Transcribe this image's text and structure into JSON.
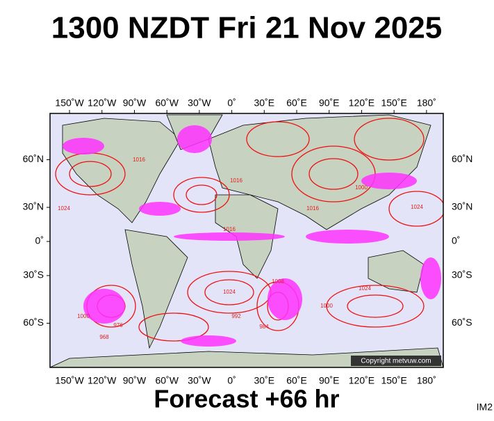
{
  "header": {
    "title": "1300 NZDT Fri 21 Nov 2025"
  },
  "map": {
    "lon_ticks": [
      {
        "value": -150,
        "label": "150˚W"
      },
      {
        "value": -120,
        "label": "120˚W"
      },
      {
        "value": -90,
        "label": "90˚W"
      },
      {
        "value": -60,
        "label": "60˚W"
      },
      {
        "value": -30,
        "label": "30˚W"
      },
      {
        "value": 0,
        "label": "0˚"
      },
      {
        "value": 30,
        "label": "30˚E"
      },
      {
        "value": 60,
        "label": "60˚E"
      },
      {
        "value": 90,
        "label": "90˚E"
      },
      {
        "value": 120,
        "label": "120˚E"
      },
      {
        "value": 150,
        "label": "150˚E"
      },
      {
        "value": 180,
        "label": "180˚"
      }
    ],
    "lat_ticks": [
      {
        "value": 60,
        "label": "60˚N"
      },
      {
        "value": 30,
        "label": "30˚N"
      },
      {
        "value": 0,
        "label": "0˚"
      },
      {
        "value": -30,
        "label": "30˚S"
      },
      {
        "value": -60,
        "label": "60˚S"
      }
    ],
    "isobar_labels": [
      "1024",
      "1016",
      "1016",
      "1024",
      "1016",
      "1000",
      "992",
      "984",
      "976",
      "968",
      "1008",
      "1000",
      "1024",
      "1016",
      "1000",
      "1024"
    ],
    "copyright": "Copyright metvuw.com"
  },
  "footer": {
    "caption": "Forecast +66 hr",
    "code": "IM2"
  }
}
